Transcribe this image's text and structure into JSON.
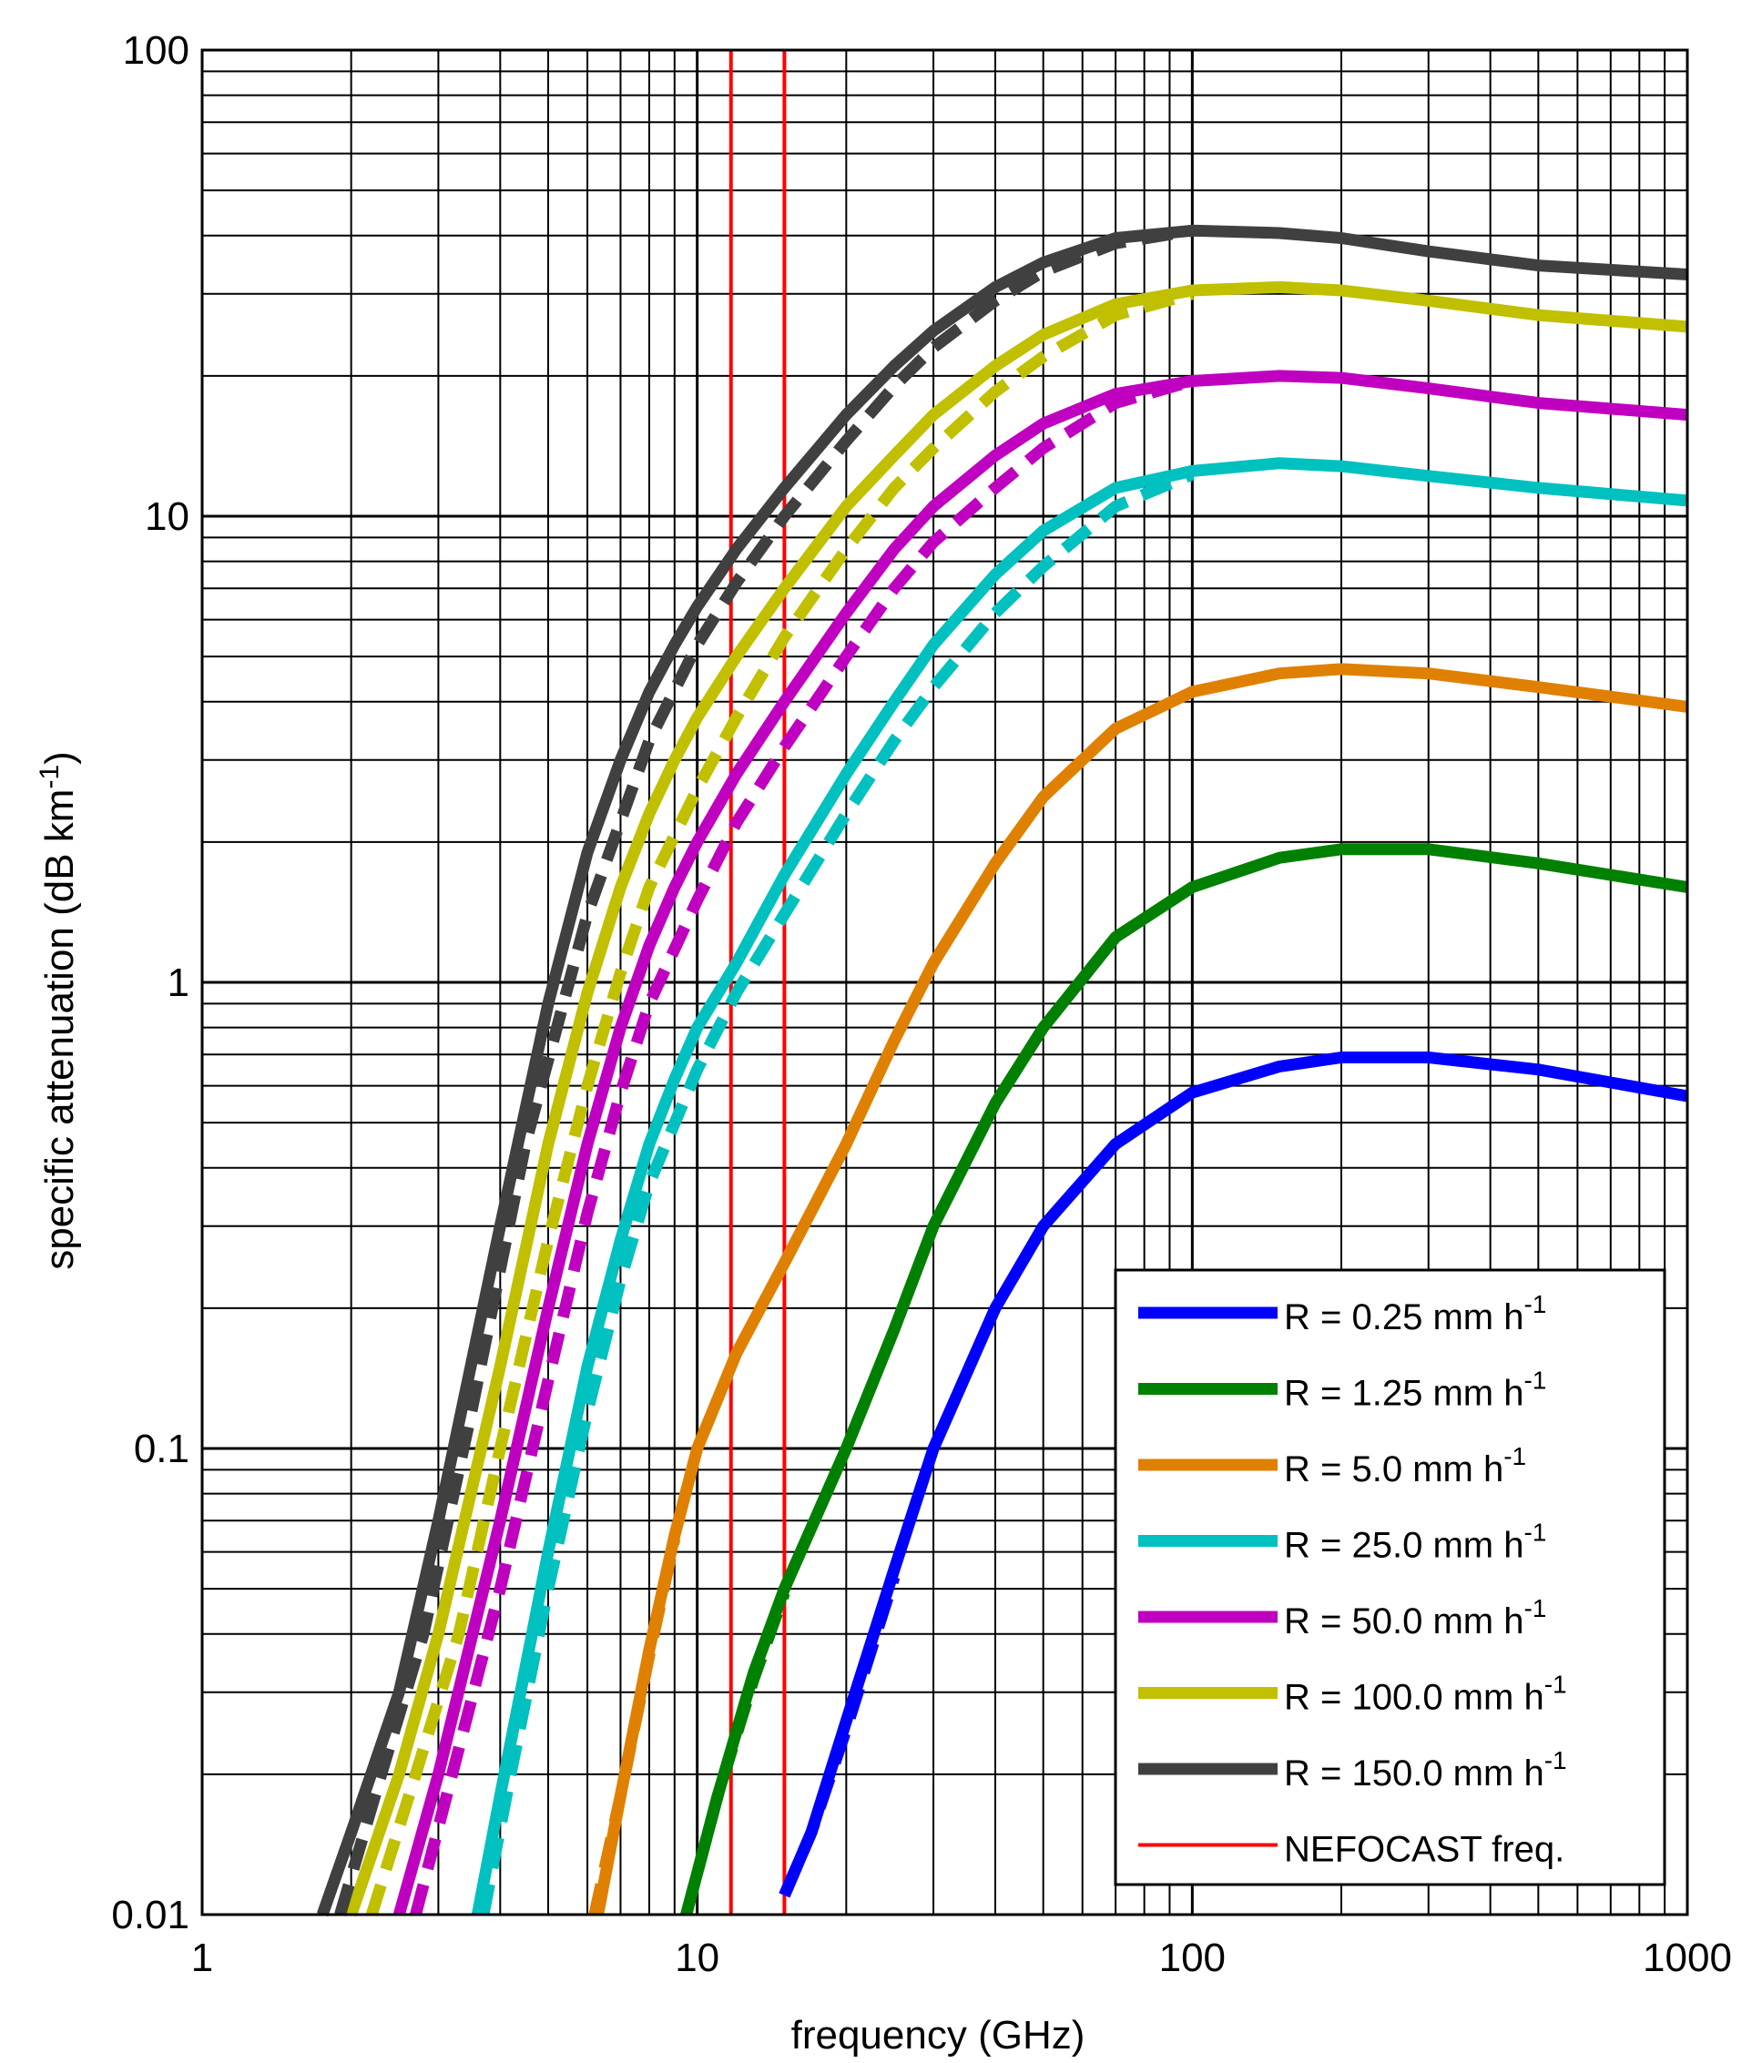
{
  "chart_data": {
    "type": "line",
    "title": "",
    "xlabel": "frequency (GHz)",
    "ylabel": "specific attenuation (dB km",
    "ylabel_sup": "-1",
    "ylabel_close": ")",
    "xscale": "log",
    "yscale": "log",
    "xlim": [
      1,
      1000
    ],
    "ylim": [
      0.01,
      100
    ],
    "grid": true,
    "x_tick_labels": [
      "1",
      "10",
      "100",
      "1000"
    ],
    "y_tick_labels": [
      "0.01",
      "0.1",
      "1",
      "10",
      "100"
    ],
    "legend_position": "bottom-right",
    "series": [
      {
        "name": "R = 0.25 mm h",
        "sup": "-1",
        "color": "#0000ff",
        "points": [
          [
            15,
            0.011
          ],
          [
            17,
            0.015
          ],
          [
            20,
            0.026
          ],
          [
            25,
            0.055
          ],
          [
            30,
            0.1
          ],
          [
            40,
            0.2
          ],
          [
            50,
            0.3
          ],
          [
            70,
            0.45
          ],
          [
            100,
            0.58
          ],
          [
            150,
            0.66
          ],
          [
            200,
            0.69
          ],
          [
            300,
            0.69
          ],
          [
            500,
            0.65
          ],
          [
            1000,
            0.57
          ]
        ]
      },
      {
        "name": "R = 1.25 mm h",
        "sup": "-1",
        "color": "#008000",
        "points": [
          [
            9.5,
            0.01
          ],
          [
            11,
            0.018
          ],
          [
            13,
            0.033
          ],
          [
            15,
            0.05
          ],
          [
            20,
            0.1
          ],
          [
            25,
            0.18
          ],
          [
            30,
            0.3
          ],
          [
            40,
            0.55
          ],
          [
            50,
            0.8
          ],
          [
            70,
            1.25
          ],
          [
            100,
            1.6
          ],
          [
            150,
            1.85
          ],
          [
            200,
            1.93
          ],
          [
            300,
            1.93
          ],
          [
            500,
            1.8
          ],
          [
            1000,
            1.6
          ]
        ]
      },
      {
        "name": "R = 5.0 mm h",
        "sup": "-1",
        "color": "#e08000",
        "points": [
          [
            6.3,
            0.01
          ],
          [
            7,
            0.018
          ],
          [
            8,
            0.037
          ],
          [
            9,
            0.065
          ],
          [
            10,
            0.1
          ],
          [
            12,
            0.16
          ],
          [
            15,
            0.25
          ],
          [
            20,
            0.45
          ],
          [
            25,
            0.75
          ],
          [
            30,
            1.1
          ],
          [
            40,
            1.8
          ],
          [
            50,
            2.5
          ],
          [
            70,
            3.5
          ],
          [
            100,
            4.2
          ],
          [
            150,
            4.6
          ],
          [
            200,
            4.7
          ],
          [
            300,
            4.6
          ],
          [
            500,
            4.3
          ],
          [
            1000,
            3.9
          ]
        ]
      },
      {
        "name": "R = 25.0 mm h",
        "sup": "-1",
        "color": "#00c0c0",
        "points": [
          [
            3.6,
            0.01
          ],
          [
            4,
            0.018
          ],
          [
            5,
            0.06
          ],
          [
            6,
            0.15
          ],
          [
            7,
            0.28
          ],
          [
            8,
            0.45
          ],
          [
            9,
            0.62
          ],
          [
            10,
            0.8
          ],
          [
            12,
            1.1
          ],
          [
            15,
            1.7
          ],
          [
            20,
            2.8
          ],
          [
            25,
            4.0
          ],
          [
            30,
            5.3
          ],
          [
            40,
            7.5
          ],
          [
            50,
            9.3
          ],
          [
            70,
            11.5
          ],
          [
            100,
            12.5
          ],
          [
            150,
            13.0
          ],
          [
            200,
            12.8
          ],
          [
            300,
            12.2
          ],
          [
            500,
            11.5
          ],
          [
            1000,
            10.8
          ]
        ]
      },
      {
        "name": "R = 50.0 mm h",
        "sup": "-1",
        "color": "#c000c0",
        "points": [
          [
            2.5,
            0.01
          ],
          [
            3,
            0.02
          ],
          [
            4,
            0.07
          ],
          [
            5,
            0.2
          ],
          [
            6,
            0.45
          ],
          [
            7,
            0.8
          ],
          [
            8,
            1.2
          ],
          [
            9,
            1.6
          ],
          [
            10,
            2.0
          ],
          [
            12,
            2.8
          ],
          [
            15,
            4.0
          ],
          [
            20,
            6.2
          ],
          [
            25,
            8.5
          ],
          [
            30,
            10.5
          ],
          [
            40,
            13.5
          ],
          [
            50,
            15.8
          ],
          [
            70,
            18.3
          ],
          [
            100,
            19.5
          ],
          [
            150,
            20.0
          ],
          [
            200,
            19.8
          ],
          [
            300,
            18.8
          ],
          [
            500,
            17.5
          ],
          [
            1000,
            16.5
          ]
        ]
      },
      {
        "name": "R = 100.0 mm h",
        "sup": "-1",
        "color": "#c0c000",
        "points": [
          [
            2.0,
            0.01
          ],
          [
            2.5,
            0.02
          ],
          [
            3,
            0.04
          ],
          [
            4,
            0.15
          ],
          [
            5,
            0.45
          ],
          [
            6,
            0.95
          ],
          [
            7,
            1.6
          ],
          [
            8,
            2.3
          ],
          [
            9,
            3.0
          ],
          [
            10,
            3.7
          ],
          [
            12,
            5.0
          ],
          [
            15,
            7.0
          ],
          [
            20,
            10.5
          ],
          [
            25,
            13.5
          ],
          [
            30,
            16.5
          ],
          [
            40,
            21.0
          ],
          [
            50,
            24.5
          ],
          [
            70,
            28.5
          ],
          [
            100,
            30.5
          ],
          [
            150,
            31.0
          ],
          [
            200,
            30.5
          ],
          [
            300,
            29.0
          ],
          [
            500,
            27.0
          ],
          [
            1000,
            25.5
          ]
        ]
      },
      {
        "name": "R = 150.0 mm h",
        "sup": "-1",
        "color": "#404040",
        "points": [
          [
            1.75,
            0.01
          ],
          [
            2,
            0.015
          ],
          [
            2.5,
            0.03
          ],
          [
            3,
            0.07
          ],
          [
            4,
            0.3
          ],
          [
            5,
            0.9
          ],
          [
            6,
            1.9
          ],
          [
            7,
            3.0
          ],
          [
            8,
            4.2
          ],
          [
            9,
            5.3
          ],
          [
            10,
            6.4
          ],
          [
            12,
            8.5
          ],
          [
            15,
            11.5
          ],
          [
            20,
            16.5
          ],
          [
            25,
            21.0
          ],
          [
            30,
            25.0
          ],
          [
            40,
            31.0
          ],
          [
            50,
            35.0
          ],
          [
            70,
            39.5
          ],
          [
            100,
            41.0
          ],
          [
            150,
            40.5
          ],
          [
            200,
            39.5
          ],
          [
            300,
            37.0
          ],
          [
            500,
            34.5
          ],
          [
            1000,
            33.0
          ]
        ]
      }
    ],
    "dashed_series": [
      {
        "color": "#0000ff",
        "points": [
          [
            15,
            0.011
          ],
          [
            17,
            0.015
          ],
          [
            20,
            0.025
          ],
          [
            25,
            0.053
          ]
        ]
      },
      {
        "color": "#008000",
        "points": [
          [
            9.5,
            0.01
          ],
          [
            11,
            0.018
          ],
          [
            13,
            0.032
          ],
          [
            15,
            0.049
          ]
        ]
      },
      {
        "color": "#e08000",
        "points": [
          [
            6.2,
            0.01
          ],
          [
            7,
            0.018
          ],
          [
            8,
            0.036
          ],
          [
            9,
            0.064
          ]
        ]
      },
      {
        "color": "#00c0c0",
        "points": [
          [
            3.7,
            0.01
          ],
          [
            4.2,
            0.02
          ],
          [
            5,
            0.05
          ],
          [
            6,
            0.12
          ],
          [
            7,
            0.23
          ],
          [
            8,
            0.37
          ],
          [
            10,
            0.65
          ],
          [
            12,
            0.95
          ],
          [
            15,
            1.4
          ],
          [
            20,
            2.3
          ],
          [
            25,
            3.3
          ],
          [
            30,
            4.3
          ],
          [
            40,
            6.2
          ],
          [
            50,
            7.8
          ],
          [
            70,
            10.5
          ],
          [
            100,
            12.3
          ]
        ]
      },
      {
        "color": "#c000c0",
        "points": [
          [
            2.7,
            0.01
          ],
          [
            3.2,
            0.02
          ],
          [
            4,
            0.05
          ],
          [
            5,
            0.14
          ],
          [
            6,
            0.32
          ],
          [
            7,
            0.58
          ],
          [
            8,
            0.9
          ],
          [
            10,
            1.5
          ],
          [
            12,
            2.2
          ],
          [
            15,
            3.2
          ],
          [
            20,
            5.0
          ],
          [
            25,
            7.0
          ],
          [
            30,
            8.8
          ],
          [
            40,
            11.5
          ],
          [
            50,
            14.0
          ],
          [
            70,
            17.5
          ],
          [
            100,
            19.5
          ]
        ]
      },
      {
        "color": "#c0c000",
        "points": [
          [
            2.2,
            0.01
          ],
          [
            2.7,
            0.02
          ],
          [
            3.3,
            0.04
          ],
          [
            4,
            0.1
          ],
          [
            5,
            0.28
          ],
          [
            6,
            0.6
          ],
          [
            7,
            1.05
          ],
          [
            8,
            1.6
          ],
          [
            10,
            2.6
          ],
          [
            12,
            3.7
          ],
          [
            15,
            5.5
          ],
          [
            20,
            8.5
          ],
          [
            25,
            11.5
          ],
          [
            30,
            14.0
          ],
          [
            40,
            18.5
          ],
          [
            50,
            22.0
          ],
          [
            70,
            27.0
          ],
          [
            100,
            30.0
          ]
        ]
      },
      {
        "color": "#404040",
        "points": [
          [
            1.9,
            0.01
          ],
          [
            2.3,
            0.02
          ],
          [
            2.8,
            0.04
          ],
          [
            3.5,
            0.12
          ],
          [
            4.5,
            0.45
          ],
          [
            6,
            1.4
          ],
          [
            8,
            3.3
          ],
          [
            10,
            5.3
          ],
          [
            12,
            7.2
          ],
          [
            15,
            10.0
          ],
          [
            20,
            14.5
          ],
          [
            25,
            19.0
          ],
          [
            30,
            23.0
          ],
          [
            40,
            29.0
          ],
          [
            50,
            33.5
          ],
          [
            70,
            38.5
          ],
          [
            100,
            41.0
          ]
        ]
      }
    ],
    "vertical_lines": [
      {
        "name": "NEFOCAST freq.",
        "color": "#ff0000",
        "x": [
          11.7,
          15.0
        ]
      }
    ]
  }
}
